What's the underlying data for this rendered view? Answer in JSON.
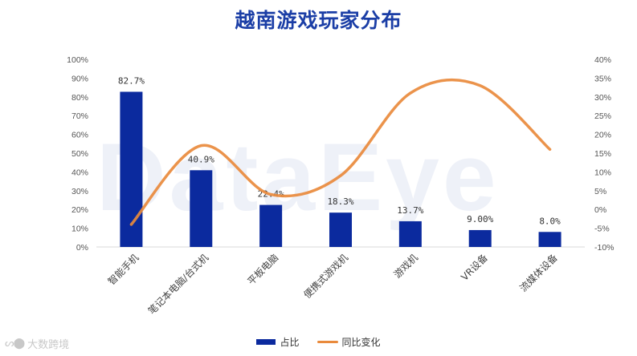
{
  "title": "越南游戏玩家分布",
  "watermark": "DataEye",
  "brand": {
    "logo_text": "ᔕ⬤",
    "name": "大数跨境"
  },
  "legend": [
    {
      "label": "占比",
      "kind": "bar",
      "color": "#0b2a9e"
    },
    {
      "label": "同比变化",
      "kind": "line",
      "color": "#e98a3c"
    }
  ],
  "chart_data": {
    "type": "bar",
    "title": "越南游戏玩家分布",
    "categories": [
      "智能手机",
      "笔记本电脑/台式机",
      "平板电脑",
      "便携式游戏机",
      "游戏机",
      "VR设备",
      "流媒体设备"
    ],
    "series": [
      {
        "name": "占比",
        "type": "bar",
        "axis": "left",
        "values": [
          82.7,
          40.9,
          22.4,
          18.3,
          13.7,
          9.0,
          8.0
        ],
        "data_labels": [
          "82.7%",
          "40.9%",
          "22.4%",
          "18.3%",
          "13.7%",
          "9.00%",
          "8.0%"
        ],
        "color": "#0b2a9e"
      },
      {
        "name": "同比变化",
        "type": "line",
        "smooth": true,
        "axis": "right",
        "values": [
          -4,
          17,
          4,
          9,
          31,
          33,
          16
        ],
        "color": "#e98a3c"
      }
    ],
    "y_left": {
      "range": [
        0,
        100
      ],
      "ticks": [
        0,
        10,
        20,
        30,
        40,
        50,
        60,
        70,
        80,
        90,
        100
      ],
      "tick_labels": [
        "0%",
        "10%",
        "20%",
        "30%",
        "40%",
        "50%",
        "60%",
        "70%",
        "80%",
        "90%",
        "100%"
      ]
    },
    "y_right": {
      "range": [
        -10,
        40
      ],
      "ticks": [
        -10,
        -5,
        0,
        5,
        10,
        15,
        20,
        25,
        30,
        35,
        40
      ],
      "tick_labels": [
        "-10%",
        "-5%",
        "0%",
        "5%",
        "10%",
        "15%",
        "20%",
        "25%",
        "30%",
        "35%",
        "40%"
      ]
    },
    "grid": false,
    "legend_position": "bottom"
  }
}
